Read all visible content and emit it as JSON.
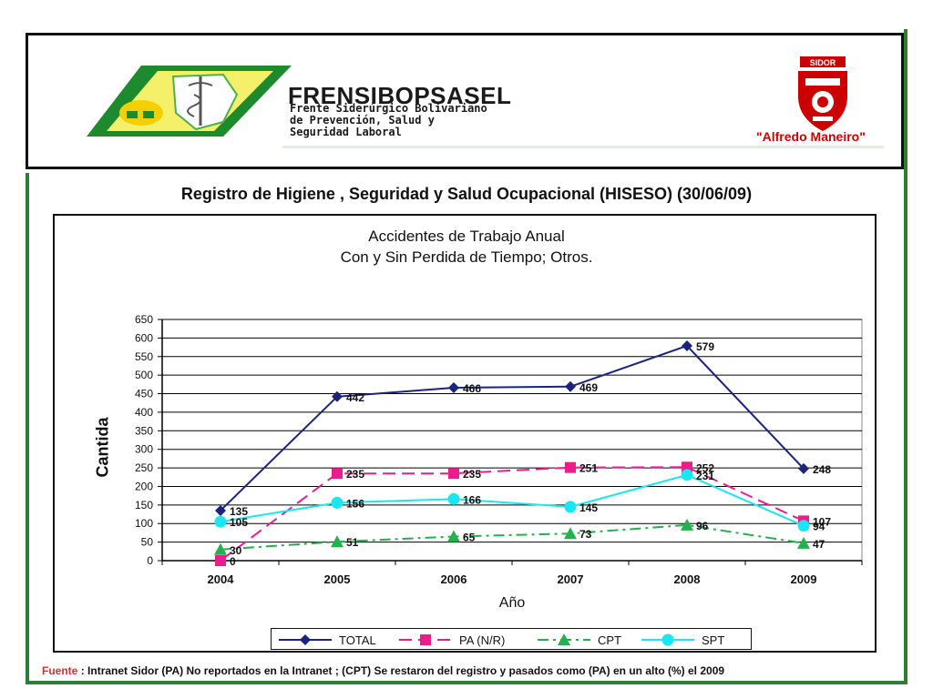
{
  "header": {
    "org_name": "FRENSIBOPSASEL",
    "org_line1": "Frente Siderúrgico Bolivariano",
    "org_line2": "de Prevención, Salud y",
    "org_line3": "Seguridad Laboral",
    "right_logo_text": "SIDOR",
    "right_caption": "\"Alfredo Maneiro\""
  },
  "slide_title": "Registro de Higiene , Seguridad y Salud Ocupacional (HISESO) (30/06/09)",
  "chart_data": {
    "type": "line",
    "title_line1": "Accidentes de Trabajo Anual",
    "title_line2": "Con y Sin Perdida de Tiempo; Otros.",
    "xlabel": "Año",
    "ylabel": "Cantida",
    "categories": [
      "2004",
      "2005",
      "2006",
      "2007",
      "2008",
      "2009"
    ],
    "ylim": [
      0,
      650
    ],
    "yticks": [
      0,
      50,
      100,
      150,
      200,
      250,
      300,
      350,
      400,
      450,
      500,
      550,
      600,
      650
    ],
    "grid": true,
    "legend_position": "bottom",
    "series": [
      {
        "name": "TOTAL",
        "values": [
          135,
          442,
          466,
          469,
          579,
          248
        ],
        "color": "#1a237e",
        "marker": "diamond",
        "dash": "solid"
      },
      {
        "name": "PA (N/R)",
        "values": [
          0,
          235,
          235,
          251,
          252,
          107
        ],
        "color": "#e91e8c",
        "marker": "square",
        "dash": "dashed"
      },
      {
        "name": "CPT",
        "values": [
          30,
          51,
          65,
          73,
          96,
          47
        ],
        "color": "#22b14c",
        "marker": "triangle",
        "dash": "dashdot"
      },
      {
        "name": "SPT",
        "values": [
          105,
          156,
          166,
          145,
          231,
          94
        ],
        "color": "#19e6f0",
        "marker": "circle",
        "dash": "solid"
      }
    ]
  },
  "footer": {
    "source_label": "Fuente",
    "separator": ":",
    "text": "Intranet Sidor (PA) No reportados en la Intranet ; (CPT) Se restaron del registro y pasados como (PA) en un alto (%) el 2009"
  }
}
